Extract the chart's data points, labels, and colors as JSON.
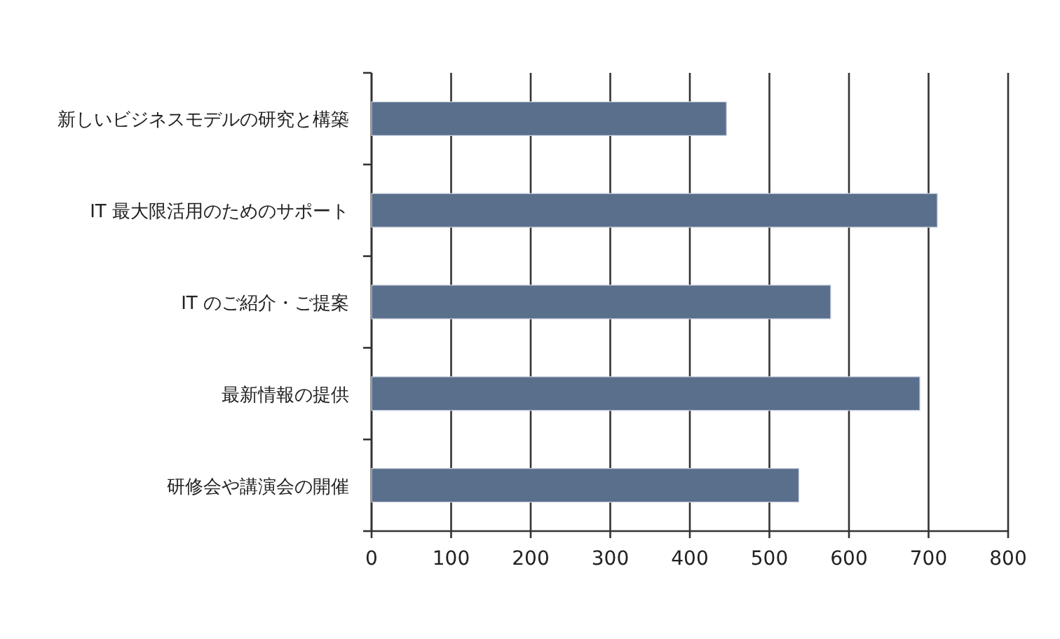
{
  "chart_data": {
    "type": "bar",
    "orientation": "horizontal",
    "categories": [
      "新しいビジネスモデルの研究と構築",
      "IT 最大限活用のためのサポート",
      "IT のご紹介・ご提案",
      "最新情報の提供",
      "研修会や講演会の開催"
    ],
    "values": [
      446,
      711,
      577,
      689,
      537
    ],
    "color": "#5a6f8c",
    "xlim": [
      0,
      800
    ],
    "xticks": [
      0,
      100,
      200,
      300,
      400,
      500,
      600,
      700,
      800
    ],
    "grid": "x"
  }
}
